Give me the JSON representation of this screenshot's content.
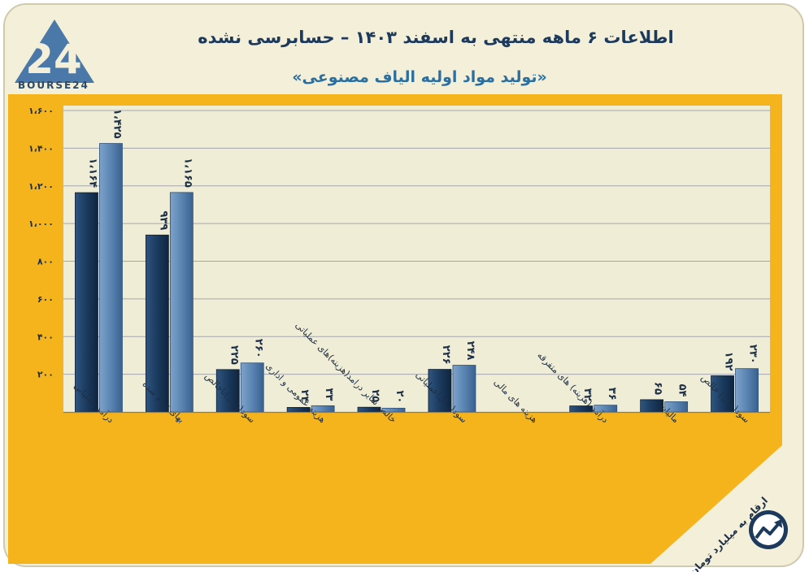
{
  "header": {
    "title": "اطلاعات ۶ ماهه منتهی به اسفند ۱۴۰۳ – حسابرسی نشده",
    "subtitle": "«تولید مواد اولیه الیاف مصنوعی»",
    "logo_text": "BOURSE24",
    "logo_mark": "24"
  },
  "footer": {
    "note": "ارقام به میلیارد تومان",
    "icon": "trend-up-icon"
  },
  "colors": {
    "frame": "#f5b41b",
    "plot_bg": "#f0edd6",
    "bar_dark": "#1b3a5e",
    "bar_light": "#5a84b2",
    "grid": "#a6a6ae"
  },
  "chart_data": {
    "type": "bar",
    "ylim": [
      0,
      1600
    ],
    "yticks": [
      0,
      200,
      400,
      600,
      800,
      1000,
      1200,
      1400,
      1600
    ],
    "ytick_labels": [
      "",
      "۲۰۰",
      "۴۰۰",
      "۶۰۰",
      "۸۰۰",
      "۱،۰۰۰",
      "۱،۲۰۰",
      "۱،۴۰۰",
      "۱،۶۰۰"
    ],
    "grid": true,
    "categories": [
      "درآمد عملیاتی",
      "بهای تمام شده",
      "سود(زیان)ناخالص",
      "هزینه عمومی و اداری",
      "خالص سایر درامد(هزینه)های عملیاتی",
      "سود(زیان)عملیاتی",
      "هزینه های مالی",
      "درآمد (هزینه) های متفرقه",
      "مالیات",
      "سود(زیان) خالص"
    ],
    "series": [
      {
        "values": [
          1164,
          939,
          225,
          24,
          25,
          226,
          0,
          32,
          65,
          192
        ],
        "labels": [
          "۱،۱۶۴",
          "۹۳۹",
          "۲۲۵",
          "۲۴",
          "۲۵",
          "۲۲۶",
          "",
          "۳۲",
          "۶۵",
          "۱۹۲"
        ]
      },
      {
        "values": [
          1425,
          1165,
          260,
          33,
          20,
          248,
          0,
          36,
          54,
          230
        ],
        "labels": [
          "۱،۴۲۵",
          "۱،۱۶۵",
          "۲۶۰",
          "۳۳",
          "۲۰",
          "۲۴۸",
          "",
          "۳۶",
          "۵۴",
          "۲۳۰"
        ]
      }
    ]
  }
}
